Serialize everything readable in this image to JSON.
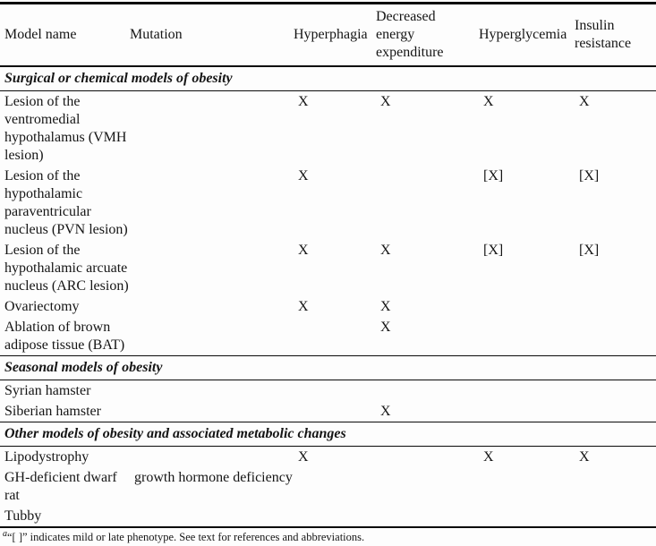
{
  "table": {
    "columns": [
      {
        "label": "Model name"
      },
      {
        "label": "Mutation"
      },
      {
        "label": "Hyperphagia"
      },
      {
        "label": "Decreased\nenergy\nexpenditure"
      },
      {
        "label": "Hyperglycemia"
      },
      {
        "label": "Insulin\nresistance"
      }
    ],
    "sections": [
      {
        "title": "Surgical or chemical models of obesity",
        "rows": [
          {
            "model": "Lesion of the\nventromedial\nhypothalamus (VMH\nlesion)",
            "mutation": "",
            "hyperphagia": "X",
            "decreased_energy": "X",
            "hyperglycemia": "X",
            "insulin_resistance": "X"
          },
          {
            "model": "Lesion of the\nhypothalamic\nparaventricular\nnucleus (PVN lesion)",
            "mutation": "",
            "hyperphagia": "X",
            "decreased_energy": "",
            "hyperglycemia": "[X]",
            "insulin_resistance": "[X]"
          },
          {
            "model": "Lesion of the\nhypothalamic arcuate\nnucleus (ARC lesion)",
            "mutation": "",
            "hyperphagia": "X",
            "decreased_energy": "X",
            "hyperglycemia": "[X]",
            "insulin_resistance": "[X]"
          },
          {
            "model": "Ovariectomy",
            "mutation": "",
            "hyperphagia": "X",
            "decreased_energy": "X",
            "hyperglycemia": "",
            "insulin_resistance": ""
          },
          {
            "model": "Ablation of brown\nadipose tissue (BAT)",
            "mutation": "",
            "hyperphagia": "",
            "decreased_energy": "X",
            "hyperglycemia": "",
            "insulin_resistance": ""
          }
        ]
      },
      {
        "title": "Seasonal models of obesity",
        "rows": [
          {
            "model": "Syrian hamster",
            "mutation": "",
            "hyperphagia": "",
            "decreased_energy": "",
            "hyperglycemia": "",
            "insulin_resistance": ""
          },
          {
            "model": "Siberian hamster",
            "mutation": "",
            "hyperphagia": "",
            "decreased_energy": "X",
            "hyperglycemia": "",
            "insulin_resistance": ""
          }
        ]
      },
      {
        "title": "Other models of obesity and associated metabolic changes",
        "rows": [
          {
            "model": "Lipodystrophy",
            "mutation": "",
            "hyperphagia": "X",
            "decreased_energy": "",
            "hyperglycemia": "X",
            "insulin_resistance": "X"
          },
          {
            "model": "GH-deficient dwarf\nrat",
            "mutation": "growth hormone deficiency",
            "hyperphagia": "",
            "decreased_energy": "",
            "hyperglycemia": "",
            "insulin_resistance": ""
          },
          {
            "model": "Tubby",
            "mutation": "",
            "hyperphagia": "",
            "decreased_energy": "",
            "hyperglycemia": "",
            "insulin_resistance": ""
          }
        ]
      }
    ]
  },
  "footnote": {
    "marker": "a",
    "text": "“[ ]” indicates mild or late phenotype. See text for references and abbreviations."
  }
}
